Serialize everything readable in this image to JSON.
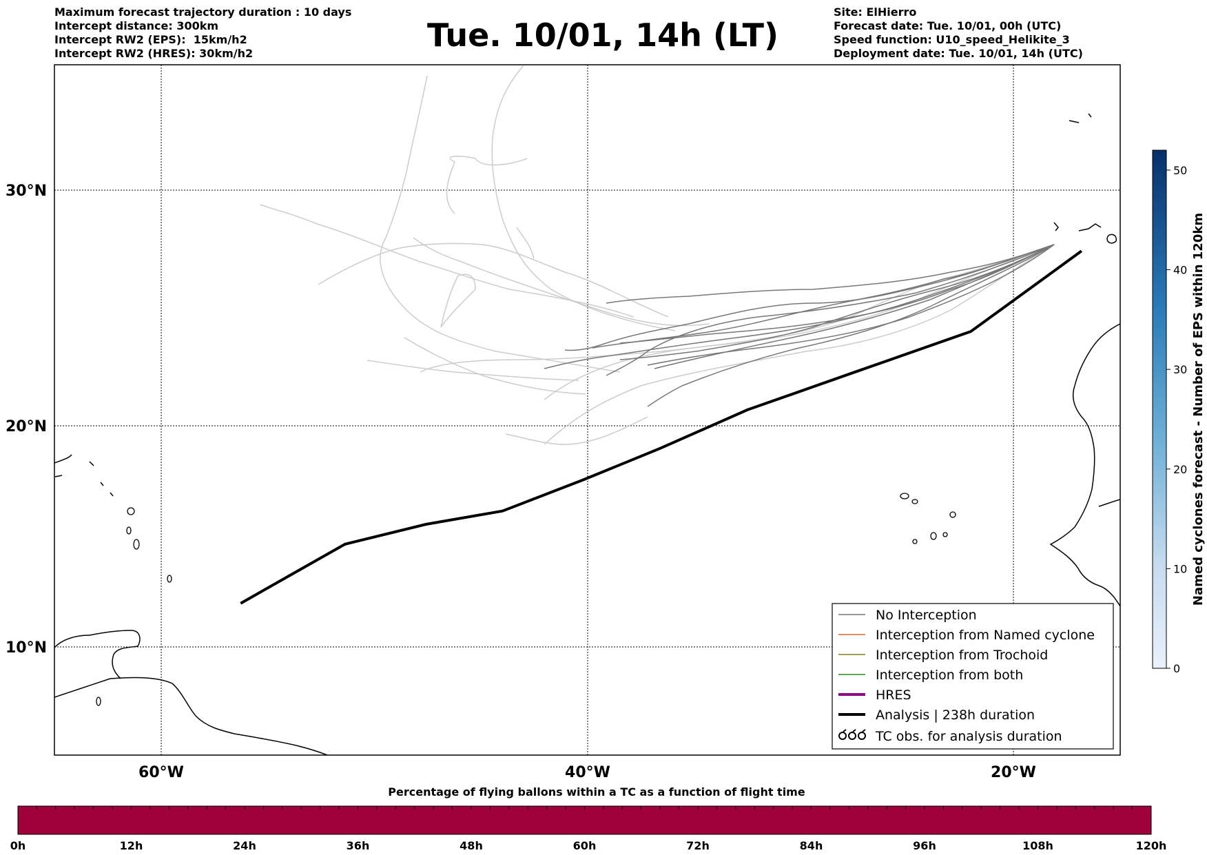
{
  "header": {
    "info_left": [
      "Maximum forecast trajectory duration : 10 days",
      "Intercept distance: 300km",
      "Intercept RW2 (EPS):  15km/h2",
      "Intercept RW2 (HRES): 30km/h2"
    ],
    "title": "Tue. 10/01, 14h (LT)",
    "info_right": [
      "Site: ElHierro",
      "Forecast date: Tue. 10/01, 00h (UTC)",
      "Speed function: U10_speed_Helikite_3",
      "Deployment date: Tue. 10/01, 14h (UTC)"
    ]
  },
  "map": {
    "extent": {
      "lon": [
        -65,
        -15
      ],
      "lat": [
        5,
        35
      ]
    },
    "lat_labels": [
      "30°N",
      "20°N",
      "10°N"
    ],
    "lon_labels": [
      "60°W",
      "40°W",
      "20°W"
    ],
    "colors": {
      "no_interception": "#777777",
      "early_members": "#cccccc",
      "named_cyclone": "#e8602c",
      "trochoid": "#808020",
      "both": "#228b22",
      "hres": "#8b008b",
      "analysis": "#000000"
    }
  },
  "legend": {
    "items": [
      {
        "label": "No Interception",
        "style": "thin-gray"
      },
      {
        "label": "Interception from Named cyclone",
        "style": "thin-orange"
      },
      {
        "label": "Interception from Trochoid",
        "style": "thin-olive"
      },
      {
        "label": "Interception from both",
        "style": "thin-green"
      },
      {
        "label": "HRES",
        "style": "thick-purple"
      },
      {
        "label": "Analysis | 238h duration",
        "style": "thick-black"
      },
      {
        "label": "TC obs. for analysis duration",
        "style": "tc-symbols"
      }
    ]
  },
  "colorbar_right": {
    "label": "Named cyclones forecast - Number of EPS within 120km",
    "ticks": [
      "0",
      "10",
      "20",
      "30",
      "40",
      "50"
    ],
    "range": [
      0,
      52
    ],
    "color_low": "#e8f0fa",
    "color_high": "#08306b"
  },
  "colorbar_bottom": {
    "title": "Percentage of flying ballons within a TC as a function of flight time",
    "ticks": [
      "0h",
      "12h",
      "24h",
      "36h",
      "48h",
      "60h",
      "72h",
      "84h",
      "96h",
      "108h",
      "120h"
    ],
    "fill_color": "#9e003a"
  },
  "chart_data": {
    "type": "line",
    "title": "Tue. 10/01, 14h (LT)",
    "xlim": [
      -65,
      -15
    ],
    "ylim": [
      5,
      35
    ],
    "series": [
      {
        "name": "Analysis | 238h duration",
        "x": [
          -16.8,
          -18.8,
          -22.0,
          -27.6,
          -32.5,
          -36.6,
          -40.2,
          -44.0,
          -47.6,
          -51.4,
          -56.3
        ],
        "y": [
          27.5,
          26.2,
          24.1,
          22.3,
          20.7,
          19.0,
          17.6,
          16.2,
          15.6,
          14.7,
          12.0
        ]
      }
    ]
  }
}
